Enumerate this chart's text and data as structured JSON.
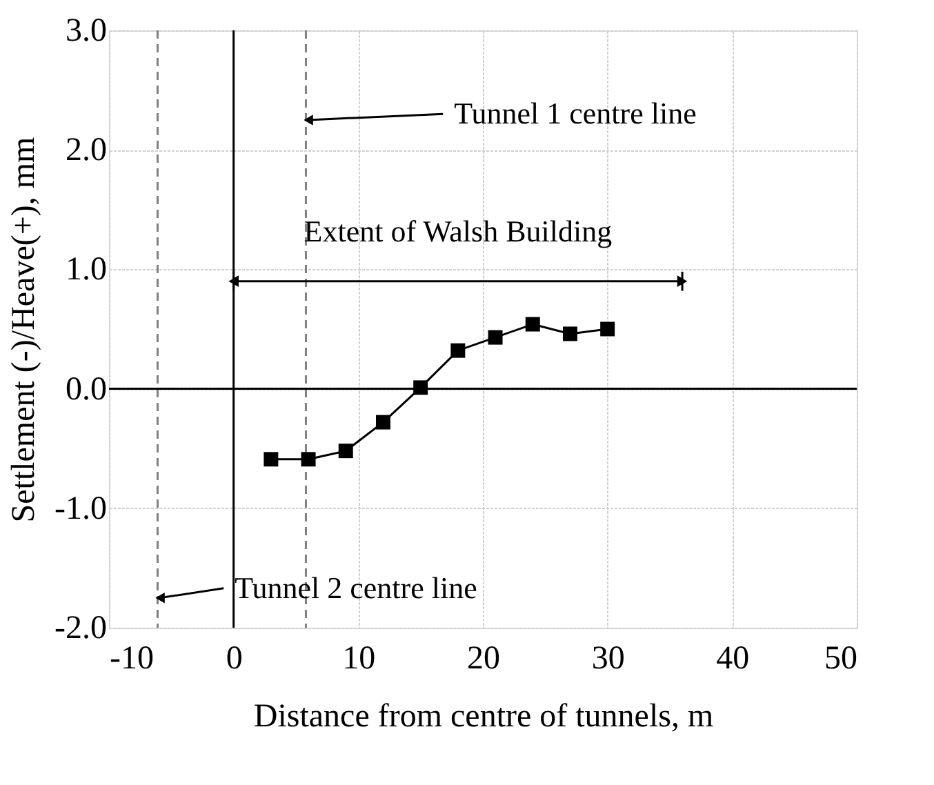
{
  "chart_data": {
    "type": "line",
    "xlabel": "Distance from centre of tunnels, m",
    "ylabel": "Settlement (-)/Heave(+), mm",
    "x": [
      3,
      6,
      9,
      12,
      15,
      18,
      21,
      24,
      27,
      30
    ],
    "series": [
      {
        "color": "#000000",
        "values": [
          -0.59,
          -0.59,
          -0.52,
          -0.28,
          0.01,
          0.32,
          0.43,
          0.54,
          0.46,
          0.5
        ]
      },
      {
        "name": "Extent of Walsh Building",
        "type": "line",
        "x": [
          0,
          36
        ],
        "values": [
          0.9,
          0.9
        ],
        "color": "#000000",
        "marker": "triangle",
        "errors": [
          0.08,
          0.08
        ]
      }
    ],
    "xlim": [
      -10,
      50
    ],
    "xticks": [
      {
        "value": -10,
        "label": "-10"
      },
      0,
      10,
      20,
      30,
      40,
      50
    ],
    "ylim": [
      -2.0,
      3.0
    ],
    "yticks": [
      {
        "value": -2,
        "label": "-2.0"
      },
      {
        "value": -1,
        "label": "-1.0"
      },
      {
        "value": 0,
        "label": "0.0"
      },
      {
        "value": 1,
        "label": "1.0"
      },
      {
        "value": 2,
        "label": "2.0"
      },
      {
        "value": 3,
        "label": "3.0"
      }
    ],
    "ref_lines": [
      {
        "axis": "x",
        "value": 5.8,
        "label": "Tunnel 1 centre line",
        "color": "#808080",
        "line_style": "dashed"
      },
      {
        "axis": "x",
        "value": -6.1,
        "label": "Tunnel 2 centre line",
        "color": "#808080",
        "line_style": "dashed"
      },
      {
        "axis": "x",
        "value": 0,
        "color": "#000000",
        "line_style": "solid"
      },
      {
        "axis": "y",
        "value": 0,
        "color": "#000000",
        "line_style": "solid"
      }
    ],
    "grid": true,
    "marker": "square",
    "line_style": "solid"
  }
}
